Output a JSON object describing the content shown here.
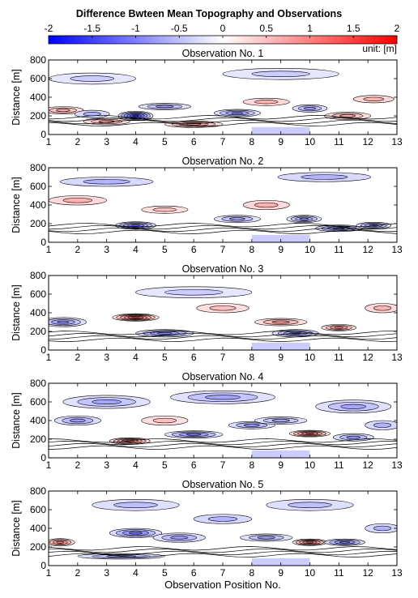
{
  "figure": {
    "title": "Difference Bwteen Mean Topography and Observations",
    "xlabel": "Observation Position No.",
    "ylabel": "Distance [m]"
  },
  "colorbar": {
    "min": -2,
    "max": 2,
    "tick_labels": [
      "-2",
      "-1.5",
      "-1",
      "-0.5",
      "0",
      "0.5",
      "1",
      "1.5",
      "2"
    ],
    "unit_label": "unit: [m]",
    "colormap": [
      "#0000ff",
      "#ffffff",
      "#ff0000"
    ]
  },
  "chart_data": [
    {
      "type": "heatmap",
      "title": "Observation No. 1",
      "x_ticks": [
        "1",
        "2",
        "3",
        "4",
        "5",
        "6",
        "7",
        "8",
        "9",
        "10",
        "11",
        "12",
        "13"
      ],
      "y_ticks": [
        "0",
        "200",
        "400",
        "600",
        "800"
      ],
      "xlim": [
        1,
        13
      ],
      "ylim": [
        0,
        800
      ],
      "no_data_region": {
        "x": [
          8,
          10
        ],
        "y": [
          0,
          80
        ]
      },
      "features": [
        {
          "x": 1.5,
          "y": 260,
          "value": 0.7,
          "sx": 0.7,
          "sy": 40
        },
        {
          "x": 2.5,
          "y": 220,
          "value": -0.6,
          "sx": 0.6,
          "sy": 40
        },
        {
          "x": 3.0,
          "y": 140,
          "value": 0.8,
          "sx": 0.8,
          "sy": 35
        },
        {
          "x": 4.0,
          "y": 200,
          "value": -1.6,
          "sx": 0.6,
          "sy": 50
        },
        {
          "x": 5.0,
          "y": 300,
          "value": -0.7,
          "sx": 0.9,
          "sy": 35
        },
        {
          "x": 6.0,
          "y": 110,
          "value": 0.9,
          "sx": 1.0,
          "sy": 35
        },
        {
          "x": 7.5,
          "y": 230,
          "value": -0.9,
          "sx": 0.8,
          "sy": 40
        },
        {
          "x": 8.5,
          "y": 350,
          "value": 0.6,
          "sx": 0.8,
          "sy": 40
        },
        {
          "x": 10.0,
          "y": 280,
          "value": -0.8,
          "sx": 0.6,
          "sy": 40
        },
        {
          "x": 11.3,
          "y": 200,
          "value": 0.7,
          "sx": 0.8,
          "sy": 40
        },
        {
          "x": 12.2,
          "y": 380,
          "value": 0.6,
          "sx": 0.7,
          "sy": 40
        },
        {
          "x": 2.5,
          "y": 600,
          "value": -0.4,
          "sx": 1.5,
          "sy": 60
        },
        {
          "x": 9.0,
          "y": 650,
          "value": -0.4,
          "sx": 2.0,
          "sy": 60
        }
      ]
    },
    {
      "type": "heatmap",
      "title": "Observation No. 2",
      "x_ticks": [
        "1",
        "2",
        "3",
        "4",
        "5",
        "6",
        "7",
        "8",
        "9",
        "10",
        "11",
        "12",
        "13"
      ],
      "y_ticks": [
        "0",
        "200",
        "400",
        "600",
        "800"
      ],
      "xlim": [
        1,
        13
      ],
      "ylim": [
        0,
        800
      ],
      "no_data_region": {
        "x": [
          8,
          10
        ],
        "y": [
          0,
          80
        ]
      },
      "features": [
        {
          "x": 2.0,
          "y": 450,
          "value": 0.6,
          "sx": 1.0,
          "sy": 50
        },
        {
          "x": 4.0,
          "y": 180,
          "value": -1.2,
          "sx": 0.7,
          "sy": 40
        },
        {
          "x": 5.0,
          "y": 350,
          "value": 0.5,
          "sx": 0.8,
          "sy": 40
        },
        {
          "x": 7.5,
          "y": 250,
          "value": -0.7,
          "sx": 0.8,
          "sy": 40
        },
        {
          "x": 8.5,
          "y": 400,
          "value": 0.6,
          "sx": 0.8,
          "sy": 50
        },
        {
          "x": 9.8,
          "y": 250,
          "value": -0.9,
          "sx": 0.6,
          "sy": 40
        },
        {
          "x": 11.0,
          "y": 150,
          "value": -1.0,
          "sx": 0.8,
          "sy": 35
        },
        {
          "x": 12.2,
          "y": 180,
          "value": -1.0,
          "sx": 0.6,
          "sy": 35
        },
        {
          "x": 3.0,
          "y": 650,
          "value": -0.6,
          "sx": 1.6,
          "sy": 50
        },
        {
          "x": 10.5,
          "y": 700,
          "value": -0.6,
          "sx": 1.6,
          "sy": 50
        }
      ]
    },
    {
      "type": "heatmap",
      "title": "Observation No. 3",
      "x_ticks": [
        "1",
        "2",
        "3",
        "4",
        "5",
        "6",
        "7",
        "8",
        "9",
        "10",
        "11",
        "12",
        "13"
      ],
      "y_ticks": [
        "0",
        "200",
        "400",
        "600",
        "800"
      ],
      "xlim": [
        1,
        13
      ],
      "ylim": [
        0,
        800
      ],
      "no_data_region": {
        "x": [
          8,
          10
        ],
        "y": [
          0,
          80
        ]
      },
      "features": [
        {
          "x": 1.5,
          "y": 300,
          "value": -0.9,
          "sx": 0.8,
          "sy": 50
        },
        {
          "x": 4.0,
          "y": 350,
          "value": 1.4,
          "sx": 0.8,
          "sy": 40
        },
        {
          "x": 5.0,
          "y": 180,
          "value": -1.0,
          "sx": 1.0,
          "sy": 40
        },
        {
          "x": 7.0,
          "y": 450,
          "value": 0.5,
          "sx": 0.9,
          "sy": 50
        },
        {
          "x": 9.0,
          "y": 300,
          "value": 0.8,
          "sx": 0.9,
          "sy": 40
        },
        {
          "x": 9.5,
          "y": 180,
          "value": -1.0,
          "sx": 0.8,
          "sy": 40
        },
        {
          "x": 11.0,
          "y": 240,
          "value": 1.0,
          "sx": 0.6,
          "sy": 35
        },
        {
          "x": 12.5,
          "y": 450,
          "value": 0.6,
          "sx": 0.6,
          "sy": 50
        },
        {
          "x": 6.0,
          "y": 620,
          "value": -0.4,
          "sx": 2.0,
          "sy": 60
        }
      ]
    },
    {
      "type": "heatmap",
      "title": "Observation No. 4",
      "x_ticks": [
        "1",
        "2",
        "3",
        "4",
        "5",
        "6",
        "7",
        "8",
        "9",
        "10",
        "11",
        "12",
        "13"
      ],
      "y_ticks": [
        "0",
        "200",
        "400",
        "600",
        "800"
      ],
      "xlim": [
        1,
        13
      ],
      "ylim": [
        0,
        800
      ],
      "no_data_region": {
        "x": [
          8,
          10
        ],
        "y": [
          0,
          80
        ]
      },
      "features": [
        {
          "x": 3.0,
          "y": 600,
          "value": -0.7,
          "sx": 1.5,
          "sy": 70
        },
        {
          "x": 7.0,
          "y": 650,
          "value": -0.7,
          "sx": 1.8,
          "sy": 70
        },
        {
          "x": 11.5,
          "y": 550,
          "value": -0.7,
          "sx": 1.3,
          "sy": 70
        },
        {
          "x": 2.0,
          "y": 400,
          "value": -0.8,
          "sx": 0.8,
          "sy": 50
        },
        {
          "x": 3.8,
          "y": 180,
          "value": 1.2,
          "sx": 0.7,
          "sy": 35
        },
        {
          "x": 5.0,
          "y": 400,
          "value": 0.5,
          "sx": 0.8,
          "sy": 50
        },
        {
          "x": 6.0,
          "y": 250,
          "value": -1.0,
          "sx": 1.0,
          "sy": 40
        },
        {
          "x": 8.0,
          "y": 350,
          "value": -0.8,
          "sx": 0.8,
          "sy": 40
        },
        {
          "x": 10.0,
          "y": 260,
          "value": 1.3,
          "sx": 0.7,
          "sy": 35
        },
        {
          "x": 11.5,
          "y": 220,
          "value": -0.8,
          "sx": 0.7,
          "sy": 40
        },
        {
          "x": 9.0,
          "y": 400,
          "value": -0.7,
          "sx": 0.9,
          "sy": 40
        },
        {
          "x": 12.5,
          "y": 350,
          "value": -0.6,
          "sx": 0.6,
          "sy": 50
        }
      ]
    },
    {
      "type": "heatmap",
      "title": "Observation No. 5",
      "x_ticks": [
        "1",
        "2",
        "3",
        "4",
        "5",
        "6",
        "7",
        "8",
        "9",
        "10",
        "11",
        "12",
        "13"
      ],
      "y_ticks": [
        "0",
        "200",
        "400",
        "600",
        "800"
      ],
      "xlim": [
        1,
        13
      ],
      "ylim": [
        0,
        800
      ],
      "no_data_region": {
        "x": [
          8,
          10
        ],
        "y": [
          0,
          80
        ]
      },
      "features": [
        {
          "x": 1.4,
          "y": 250,
          "value": 1.1,
          "sx": 0.5,
          "sy": 40
        },
        {
          "x": 4.0,
          "y": 350,
          "value": -1.1,
          "sx": 0.9,
          "sy": 50
        },
        {
          "x": 5.5,
          "y": 300,
          "value": -0.8,
          "sx": 0.9,
          "sy": 50
        },
        {
          "x": 3.5,
          "y": 100,
          "value": -0.8,
          "sx": 1.5,
          "sy": 30
        },
        {
          "x": 7.0,
          "y": 500,
          "value": -0.6,
          "sx": 1.0,
          "sy": 50
        },
        {
          "x": 8.5,
          "y": 300,
          "value": -0.7,
          "sx": 0.9,
          "sy": 40
        },
        {
          "x": 10.0,
          "y": 250,
          "value": 1.2,
          "sx": 0.6,
          "sy": 35
        },
        {
          "x": 11.2,
          "y": 250,
          "value": -1.1,
          "sx": 0.7,
          "sy": 35
        },
        {
          "x": 12.5,
          "y": 400,
          "value": -0.6,
          "sx": 0.6,
          "sy": 50
        },
        {
          "x": 4.0,
          "y": 650,
          "value": -0.5,
          "sx": 1.5,
          "sy": 60
        },
        {
          "x": 10.0,
          "y": 650,
          "value": -0.5,
          "sx": 1.5,
          "sy": 60
        }
      ]
    }
  ]
}
